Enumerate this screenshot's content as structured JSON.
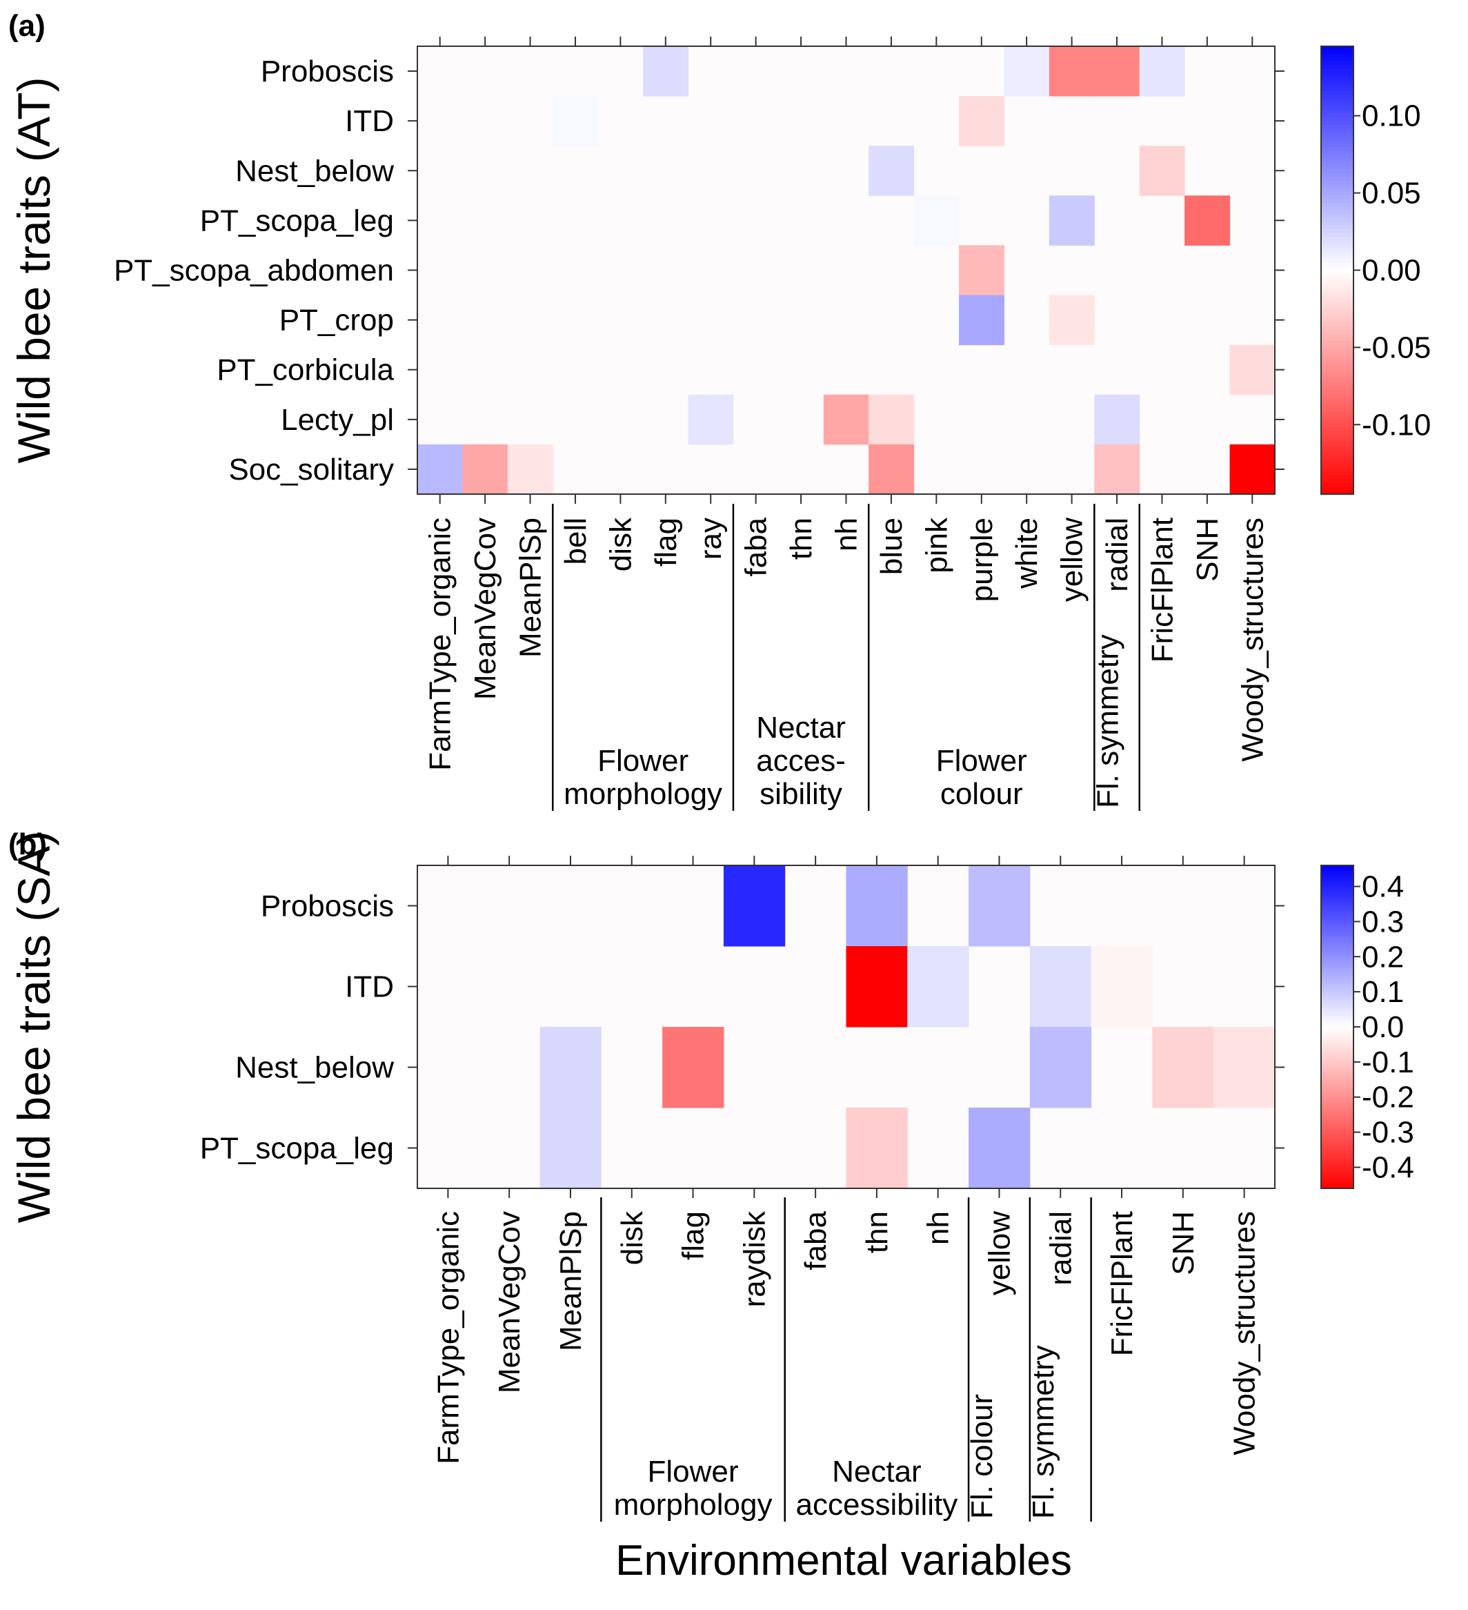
{
  "figure": {
    "x_axis_label": "Environmental variables"
  },
  "chart_data": [
    {
      "type": "heatmap",
      "panel_label": "(a)",
      "ylabel": "Wild bee traits (AT)",
      "rows": [
        "Proboscis",
        "ITD",
        "Nest_below",
        "PT_scopa_leg",
        "PT_scopa_abdomen",
        "PT_crop",
        "PT_corbicula",
        "Lecty_pl",
        "Soc_solitary"
      ],
      "columns": [
        "FarmType_organic",
        "MeanVegCov",
        "MeanPlSp",
        "bell",
        "disk",
        "flag",
        "ray",
        "faba",
        "thn",
        "nh",
        "blue",
        "pink",
        "purple",
        "white",
        "yellow",
        "radial",
        "FricFlPlant",
        "SNH",
        "Woody_structures"
      ],
      "column_groups": [
        {
          "lines": [
            "Flower",
            "morphology"
          ],
          "start": 3,
          "end": 6
        },
        {
          "lines": [
            "Nectar",
            "acces-",
            "sibility"
          ],
          "start": 7,
          "end": 9
        },
        {
          "lines": [
            "Flower",
            "colour"
          ],
          "start": 10,
          "end": 14
        },
        {
          "lines": [],
          "start": 15,
          "end": 15,
          "rotated": "Fl. symmetry"
        }
      ],
      "values": [
        [
          0,
          0,
          0,
          0,
          0,
          0.02,
          0,
          0,
          0,
          0,
          0,
          0,
          0,
          0.01,
          -0.07,
          -0.07,
          0.015,
          0,
          0
        ],
        [
          0,
          0,
          0,
          0.004,
          0,
          0,
          0,
          0,
          0,
          0,
          0,
          0,
          -0.02,
          0,
          0,
          0,
          0,
          0,
          0
        ],
        [
          0,
          0,
          0,
          0,
          0,
          0,
          0,
          0,
          0,
          0,
          0.02,
          0,
          0,
          0,
          0,
          0,
          -0.025,
          0,
          0
        ],
        [
          0,
          0,
          0,
          0,
          0,
          0,
          0,
          0,
          0,
          0,
          0,
          0.004,
          0,
          0,
          0.03,
          0,
          0,
          -0.085,
          0
        ],
        [
          0,
          0,
          0,
          0,
          0,
          0,
          0,
          0,
          0,
          0,
          0,
          0,
          -0.04,
          0,
          0,
          0,
          0,
          0,
          0
        ],
        [
          0,
          0,
          0,
          0,
          0,
          0,
          0,
          0,
          0,
          0,
          0,
          0,
          0.05,
          0,
          -0.015,
          0,
          0,
          0,
          0
        ],
        [
          0,
          0,
          0,
          0,
          0,
          0,
          0,
          0,
          0,
          0,
          0,
          0,
          0,
          0,
          0,
          0,
          0,
          0,
          -0.02
        ],
        [
          0,
          0,
          0,
          0,
          0,
          0,
          0.015,
          0,
          0,
          -0.05,
          -0.02,
          0,
          0,
          0,
          0,
          0.02,
          0,
          0,
          0
        ],
        [
          0.04,
          -0.05,
          -0.015,
          0,
          0,
          0,
          0,
          0,
          0,
          0,
          -0.06,
          0,
          0,
          0,
          0,
          -0.035,
          0,
          0,
          -0.145
        ]
      ],
      "colorbar": {
        "min": -0.145,
        "max": 0.145,
        "ticks": [
          0.1,
          0.05,
          0.0,
          -0.05,
          -0.1
        ],
        "tick_labels": [
          "0.10",
          "0.05",
          "0.00",
          "-0.05",
          "-0.10"
        ]
      }
    },
    {
      "type": "heatmap",
      "panel_label": "(b)",
      "ylabel": "Wild bee traits (SA)",
      "rows": [
        "Proboscis",
        "ITD",
        "Nest_below",
        "PT_scopa_leg"
      ],
      "columns": [
        "FarmType_organic",
        "MeanVegCov",
        "MeanPlSp",
        "disk",
        "flag",
        "raydisk",
        "faba",
        "thn",
        "nh",
        "yellow",
        "radial",
        "FricFlPlant",
        "SNH",
        "Woody_structures"
      ],
      "column_groups": [
        {
          "lines": [
            "Flower",
            "morphology"
          ],
          "start": 3,
          "end": 5
        },
        {
          "lines": [
            "Nectar",
            "accessibility"
          ],
          "start": 6,
          "end": 8
        },
        {
          "lines": [],
          "start": 9,
          "end": 9,
          "rotated": "Fl. colour"
        },
        {
          "lines": [],
          "start": 10,
          "end": 10,
          "rotated": "Fl. symmetry"
        }
      ],
      "values": [
        [
          0,
          0,
          0,
          0,
          0,
          0.39,
          0,
          0.15,
          0,
          0.12,
          0,
          0,
          0,
          0
        ],
        [
          0,
          0,
          0,
          0,
          0,
          0,
          0,
          -0.46,
          0.05,
          0,
          0.06,
          -0.02,
          0,
          0
        ],
        [
          0,
          0,
          0.07,
          0,
          -0.25,
          0,
          0,
          0,
          0,
          0,
          0.12,
          0,
          -0.08,
          -0.05
        ],
        [
          0,
          0,
          0.07,
          0,
          0,
          0,
          0,
          -0.09,
          0,
          0.15,
          0,
          0,
          0,
          0
        ]
      ],
      "colorbar": {
        "min": -0.46,
        "max": 0.46,
        "ticks": [
          0.4,
          0.3,
          0.2,
          0.1,
          0.0,
          -0.1,
          -0.2,
          -0.3,
          -0.4
        ],
        "tick_labels": [
          "0.4",
          "0.3",
          "0.2",
          "0.1",
          "0.0",
          "-0.1",
          "-0.2",
          "-0.3",
          "-0.4"
        ]
      }
    }
  ]
}
